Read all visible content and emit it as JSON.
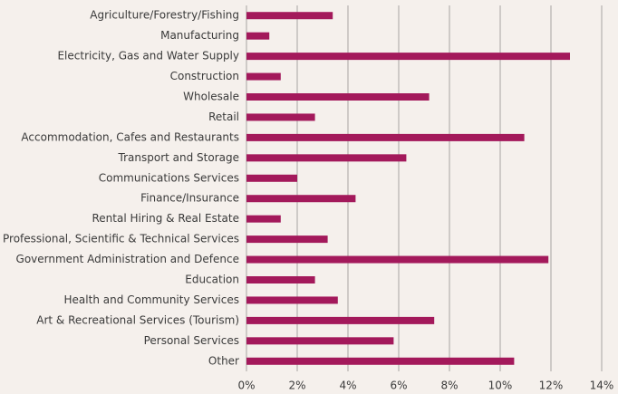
{
  "chart_data": {
    "type": "barh",
    "categories": [
      "Agriculture/Forestry/Fishing",
      "Manufacturing",
      "Electricity, Gas and Water Supply",
      "Construction",
      "Wholesale",
      "Retail",
      "Accommodation, Cafes and Restaurants",
      "Transport and Storage",
      "Communications Services",
      "Finance/Insurance",
      "Rental Hiring & Real Estate",
      "Professional, Scientific & Technical Services",
      "Government Administration and Defence",
      "Education",
      "Health and Community Services",
      "Art & Recreational Services (Tourism)",
      "Personal Services",
      "Other"
    ],
    "values": [
      3.4,
      0.9,
      12.75,
      1.35,
      7.2,
      2.7,
      10.95,
      6.3,
      2.0,
      4.3,
      1.35,
      3.2,
      11.9,
      2.7,
      3.6,
      7.4,
      5.8,
      10.55
    ],
    "color": "#a3195b",
    "xlim": [
      0,
      14
    ],
    "xticks": [
      {
        "value": 0,
        "label": "0%"
      },
      {
        "value": 2,
        "label": "2%"
      },
      {
        "value": 4,
        "label": "4%"
      },
      {
        "value": 6,
        "label": "6%"
      },
      {
        "value": 8,
        "label": "8%"
      },
      {
        "value": 10,
        "label": "10%"
      },
      {
        "value": 12,
        "label": "12%"
      },
      {
        "value": 14,
        "label": "14%"
      }
    ],
    "grid": true
  }
}
